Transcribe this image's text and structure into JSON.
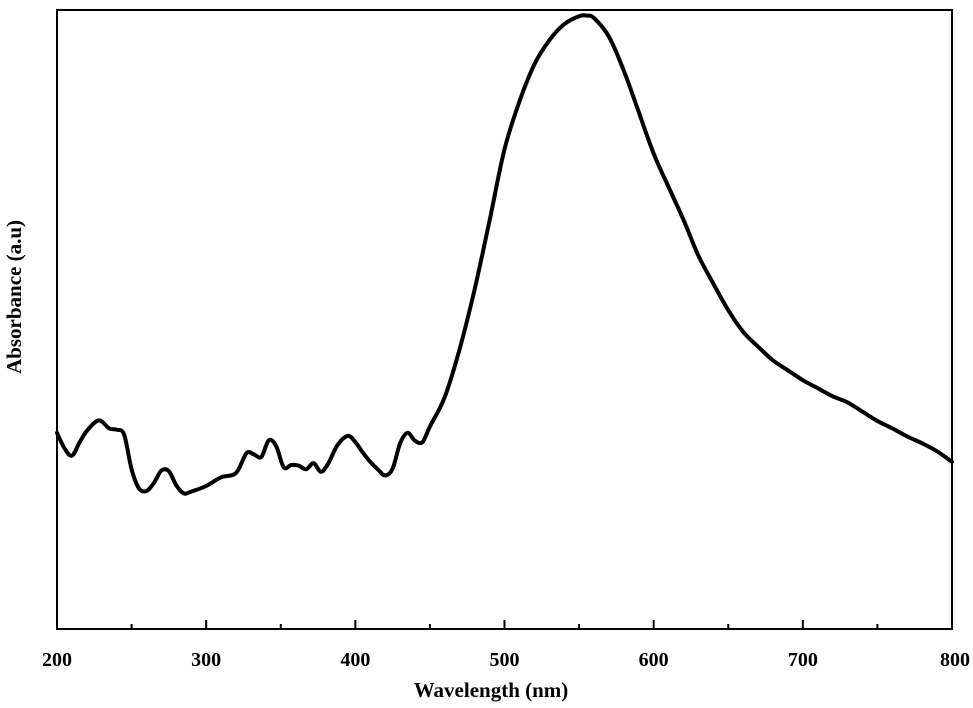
{
  "chart_data": {
    "type": "line",
    "title": "",
    "xlabel": "Wavelength (nm)",
    "ylabel": "Absorbance (a.u)",
    "xlim": [
      200,
      800
    ],
    "ylim": [
      0,
      1
    ],
    "x_ticks": [
      200,
      300,
      400,
      500,
      600,
      700,
      800
    ],
    "x_tick_labels": [
      "200",
      "300",
      "400",
      "500",
      "600",
      "700",
      "800"
    ],
    "y_tick_labels": [],
    "grid": false,
    "legend": "none",
    "line_color": "#000000",
    "series": [
      {
        "x": [
          200,
          205,
          210,
          215,
          220,
          228,
          235,
          240,
          245,
          250,
          255,
          260,
          265,
          270,
          275,
          280,
          285,
          290,
          300,
          310,
          320,
          327,
          332,
          337,
          342,
          347,
          352,
          357,
          362,
          367,
          372,
          377,
          382,
          388,
          395,
          400,
          405,
          410,
          415,
          420,
          425,
          430,
          435,
          440,
          445,
          450,
          460,
          470,
          480,
          490,
          500,
          510,
          520,
          530,
          540,
          550,
          555,
          560,
          570,
          580,
          590,
          600,
          610,
          620,
          630,
          640,
          650,
          660,
          670,
          680,
          690,
          700,
          710,
          720,
          730,
          740,
          750,
          760,
          770,
          780,
          790,
          800
        ],
        "y": [
          0.317,
          0.292,
          0.28,
          0.301,
          0.32,
          0.337,
          0.324,
          0.322,
          0.314,
          0.258,
          0.227,
          0.223,
          0.236,
          0.256,
          0.255,
          0.232,
          0.219,
          0.222,
          0.231,
          0.245,
          0.252,
          0.284,
          0.282,
          0.278,
          0.305,
          0.295,
          0.261,
          0.265,
          0.264,
          0.258,
          0.268,
          0.254,
          0.268,
          0.297,
          0.312,
          0.302,
          0.285,
          0.27,
          0.258,
          0.248,
          0.259,
          0.3,
          0.317,
          0.304,
          0.302,
          0.327,
          0.375,
          0.453,
          0.549,
          0.66,
          0.775,
          0.852,
          0.912,
          0.951,
          0.977,
          0.99,
          0.991,
          0.987,
          0.957,
          0.902,
          0.835,
          0.768,
          0.714,
          0.661,
          0.603,
          0.558,
          0.515,
          0.48,
          0.456,
          0.434,
          0.418,
          0.402,
          0.389,
          0.376,
          0.366,
          0.351,
          0.336,
          0.324,
          0.311,
          0.3,
          0.287,
          0.27
        ]
      }
    ]
  }
}
